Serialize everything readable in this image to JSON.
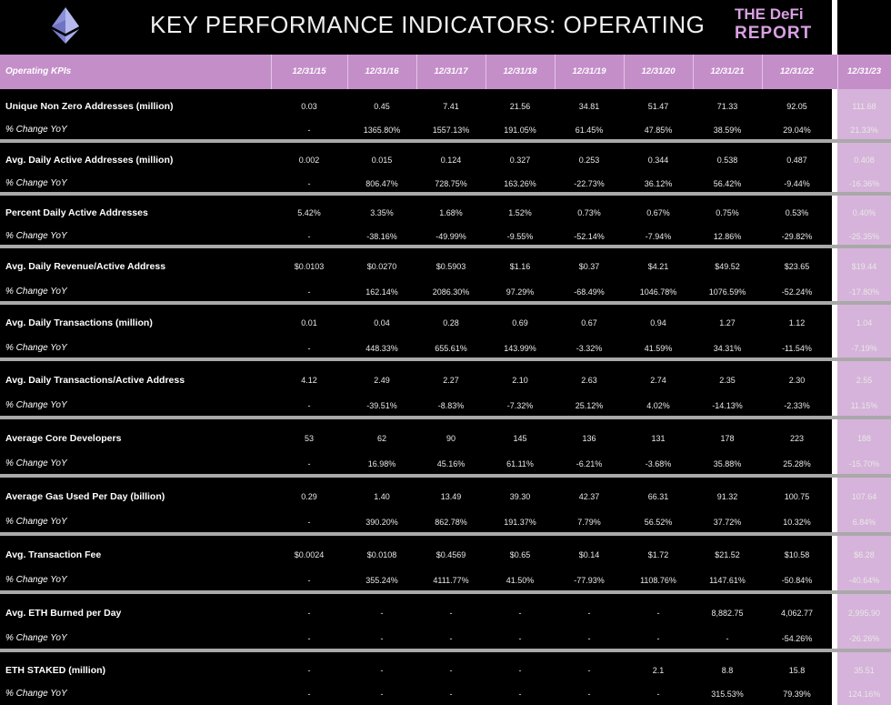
{
  "header": {
    "title": "KEY PERFORMANCE INDICATORS: OPERATING",
    "brand_line1": "THE DeFi",
    "brand_line2": "REPORT"
  },
  "table": {
    "label_header": "Operating KPIs",
    "columns": [
      "12/31/15",
      "12/31/16",
      "12/31/17",
      "12/31/18",
      "12/31/19",
      "12/31/20",
      "12/31/21",
      "12/31/22",
      "12/31/23"
    ],
    "groups": [
      {
        "label": "Unique Non Zero Addresses (million)",
        "values": [
          "0.03",
          "0.45",
          "7.41",
          "21.56",
          "34.81",
          "51.47",
          "71.33",
          "92.05",
          "111.68"
        ],
        "sub_label": "% Change YoY",
        "sub_values": [
          "-",
          "1365.80%",
          "1557.13%",
          "191.05%",
          "61.45%",
          "47.85%",
          "38.59%",
          "29.04%",
          "21.33%"
        ]
      },
      {
        "label": "Avg. Daily Active Addresses (million)",
        "values": [
          "0.002",
          "0.015",
          "0.124",
          "0.327",
          "0.253",
          "0.344",
          "0.538",
          "0.487",
          "0.408"
        ],
        "sub_label": "% Change YoY",
        "sub_values": [
          "-",
          "806.47%",
          "728.75%",
          "163.26%",
          "-22.73%",
          "36.12%",
          "56.42%",
          "-9.44%",
          "-16.36%"
        ]
      },
      {
        "label": "Percent Daily Active Addresses",
        "values": [
          "5.42%",
          "3.35%",
          "1.68%",
          "1.52%",
          "0.73%",
          "0.67%",
          "0.75%",
          "0.53%",
          "0.40%"
        ],
        "sub_label": "% Change YoY",
        "sub_values": [
          "-",
          "-38.16%",
          "-49.99%",
          "-9.55%",
          "-52.14%",
          "-7.94%",
          "12.86%",
          "-29.82%",
          "-25.35%"
        ]
      },
      {
        "label": "Avg. Daily Revenue/Active Address",
        "values": [
          "$0.0103",
          "$0.0270",
          "$0.5903",
          "$1.16",
          "$0.37",
          "$4.21",
          "$49.52",
          "$23.65",
          "$19.44"
        ],
        "sub_label": "% Change YoY",
        "sub_values": [
          "-",
          "162.14%",
          "2086.30%",
          "97.29%",
          "-68.49%",
          "1046.78%",
          "1076.59%",
          "-52.24%",
          "-17.80%"
        ]
      },
      {
        "label": "Avg. Daily Transactions (million)",
        "values": [
          "0.01",
          "0.04",
          "0.28",
          "0.69",
          "0.67",
          "0.94",
          "1.27",
          "1.12",
          "1.04"
        ],
        "sub_label": "% Change YoY",
        "sub_values": [
          "-",
          "448.33%",
          "655.61%",
          "143.99%",
          "-3.32%",
          "41.59%",
          "34.31%",
          "-11.54%",
          "-7.19%"
        ]
      },
      {
        "label": "Avg. Daily Transactions/Active Address",
        "values": [
          "4.12",
          "2.49",
          "2.27",
          "2.10",
          "2.63",
          "2.74",
          "2.35",
          "2.30",
          "2.55"
        ],
        "sub_label": "% Change YoY",
        "sub_values": [
          "-",
          "-39.51%",
          "-8.83%",
          "-7.32%",
          "25.12%",
          "4.02%",
          "-14.13%",
          "-2.33%",
          "11.15%"
        ]
      },
      {
        "label": "Average  Core Developers",
        "values": [
          "53",
          "62",
          "90",
          "145",
          "136",
          "131",
          "178",
          "223",
          "188"
        ],
        "sub_label": "% Change YoY",
        "sub_values": [
          "-",
          "16.98%",
          "45.16%",
          "61.11%",
          "-6.21%",
          "-3.68%",
          "35.88%",
          "25.28%",
          "-15.70%"
        ]
      },
      {
        "label": "Average Gas Used Per Day (billion)",
        "values": [
          "0.29",
          "1.40",
          "13.49",
          "39.30",
          "42.37",
          "66.31",
          "91.32",
          "100.75",
          "107.64"
        ],
        "sub_label": "% Change YoY",
        "sub_values": [
          "-",
          "390.20%",
          "862.78%",
          "191.37%",
          "7.79%",
          "56.52%",
          "37.72%",
          "10.32%",
          "6.84%"
        ]
      },
      {
        "label": "Avg. Transaction Fee",
        "values": [
          "$0.0024",
          "$0.0108",
          "$0.4569",
          "$0.65",
          "$0.14",
          "$1.72",
          "$21.52",
          "$10.58",
          "$6.28"
        ],
        "sub_label": "% Change YoY",
        "sub_values": [
          "-",
          "355.24%",
          "4111.77%",
          "41.50%",
          "-77.93%",
          "1108.76%",
          "1147.61%",
          "-50.84%",
          "-40.64%"
        ]
      },
      {
        "label": "Avg. ETH Burned per Day",
        "values": [
          "-",
          "-",
          "-",
          "-",
          "-",
          "-",
          "8,882.75",
          "4,062.77",
          "2,995.90"
        ],
        "sub_label": "% Change YoY",
        "sub_values": [
          "-",
          "-",
          "-",
          "-",
          "-",
          "-",
          "-",
          "-54.26%",
          "-26.26%"
        ]
      },
      {
        "label": "ETH STAKED (million)",
        "values": [
          "-",
          "-",
          "-",
          "-",
          "-",
          "2.1",
          "8.8",
          "15.8",
          "35.51"
        ],
        "sub_label": "% Change YoY",
        "sub_values": [
          "-",
          "-",
          "-",
          "-",
          "-",
          "-",
          "315.53%",
          "79.39%",
          "124.16%"
        ]
      }
    ]
  }
}
